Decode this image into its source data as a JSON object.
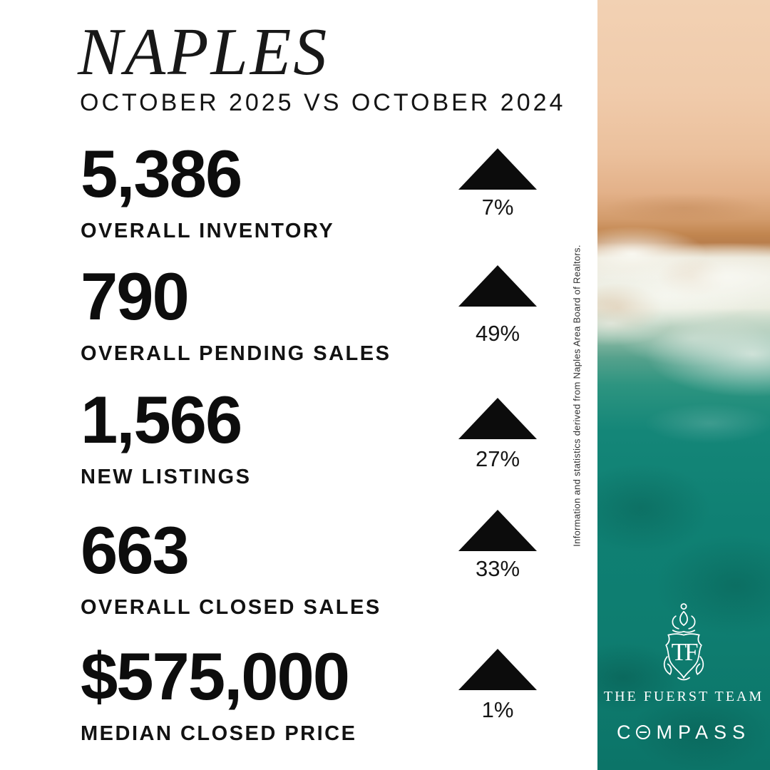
{
  "header": {
    "title": "NAPLES",
    "subtitle": "OCTOBER 2025 VS OCTOBER 2024"
  },
  "stats": [
    {
      "value": "5,386",
      "label": "OVERALL INVENTORY",
      "change": "7%",
      "trend": "up"
    },
    {
      "value": "790",
      "label": "OVERALL PENDING SALES",
      "change": "49%",
      "trend": "up"
    },
    {
      "value": "1,566",
      "label": "NEW LISTINGS",
      "change": "27%",
      "trend": "up"
    },
    {
      "value": "663",
      "label": "OVERALL CLOSED SALES",
      "change": "33%",
      "trend": "up"
    },
    {
      "value": "$575,000",
      "label": "MEDIAN CLOSED PRICE",
      "change": "1%",
      "trend": "up"
    }
  ],
  "sidebar": {
    "disclaimer": "Information and statistics derived from Naples Area Board of Realtors.",
    "crest_monogram": "TF",
    "team_name": "THE FUERST TEAM",
    "brand": "COMPASS"
  },
  "colors": {
    "text": "#121212",
    "triangle": "#0c0c0c",
    "ocean_teal": "#0f8073",
    "sand": "#f1cdae",
    "foam": "#f2f1e9",
    "logo_white": "#ffffff"
  }
}
